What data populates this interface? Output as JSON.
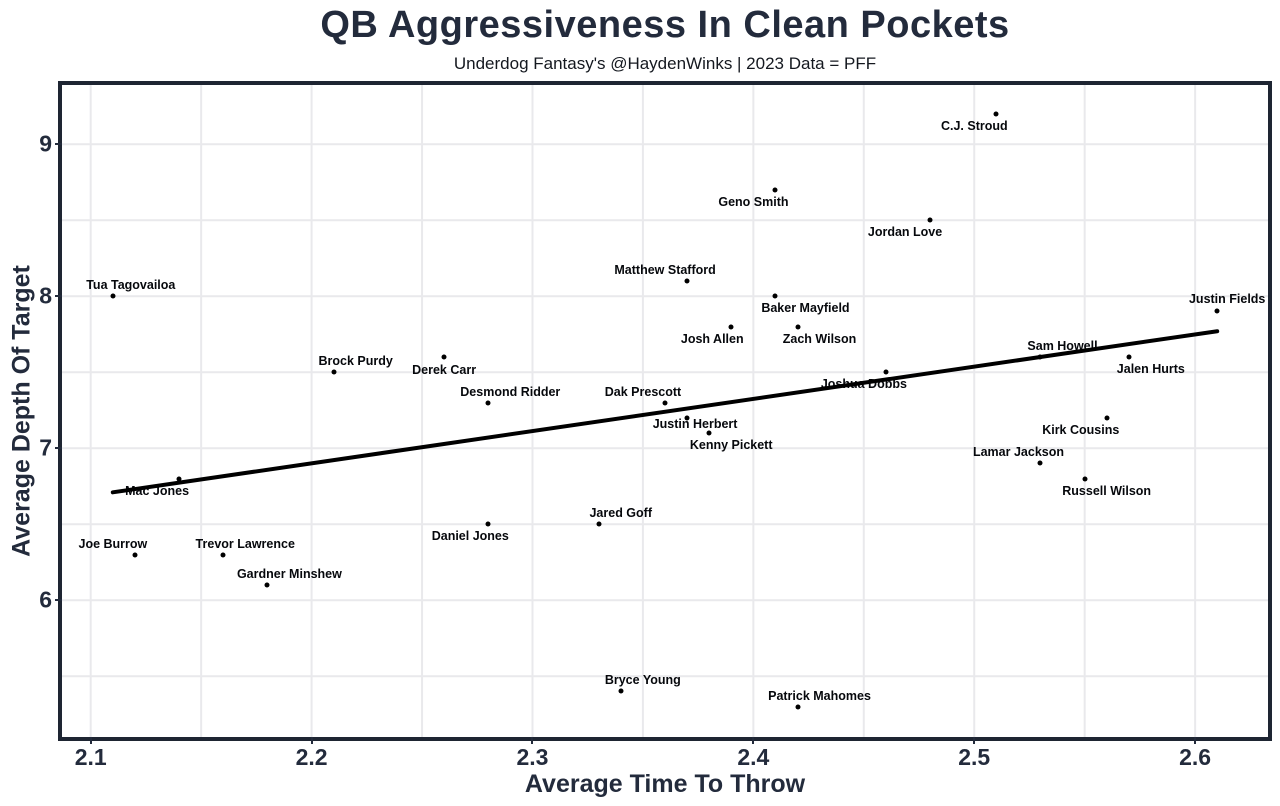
{
  "page": {
    "title": "QB Aggressiveness In Clean Pockets",
    "subtitle": "Underdog Fantasy's @HaydenWinks | 2023 Data = PFF"
  },
  "chart_data": {
    "type": "scatter",
    "title": "QB Aggressiveness In Clean Pockets",
    "subtitle": "Underdog Fantasy's @HaydenWinks | 2023 Data = PFF",
    "xlabel": "Average Time To Throw",
    "ylabel": "Average Depth Of Target",
    "xlim": [
      2.087,
      2.633
    ],
    "ylim": [
      5.1,
      9.39
    ],
    "x_ticks": [
      {
        "value": 2.1,
        "label": "2.1"
      },
      {
        "value": 2.2,
        "label": "2.2"
      },
      {
        "value": 2.3,
        "label": "2.3"
      },
      {
        "value": 2.4,
        "label": "2.4"
      },
      {
        "value": 2.5,
        "label": "2.5"
      },
      {
        "value": 2.6,
        "label": "2.6"
      }
    ],
    "y_ticks": [
      {
        "value": 6,
        "label": "6"
      },
      {
        "value": 7,
        "label": "7"
      },
      {
        "value": 8,
        "label": "8"
      },
      {
        "value": 9,
        "label": "9"
      }
    ],
    "grid": {
      "on": true,
      "x_start": 2.1,
      "x_end": 2.6,
      "x_step": 0.05,
      "y_start": 5.5,
      "y_end": 9.0,
      "y_step": 0.5
    },
    "legend": "none",
    "trend_line": {
      "x1": 2.11,
      "y1": 6.71,
      "x2": 2.61,
      "y2": 7.77
    },
    "colors": {
      "background": "#ffffff",
      "ink": "#232b3c",
      "panel_border": "#1e2532",
      "grid_line": "#e9e9ec",
      "point": "#000000",
      "trend": "#000000"
    },
    "points": [
      {
        "name": "Tua Tagovailoa",
        "x": 2.11,
        "y": 8.0,
        "pos": "above-right",
        "dx": 18
      },
      {
        "name": "Mac Jones",
        "x": 2.14,
        "y": 6.8,
        "pos": "below-left"
      },
      {
        "name": "Joe Burrow",
        "x": 2.12,
        "y": 6.3,
        "pos": "above-left"
      },
      {
        "name": "Trevor Lawrence",
        "x": 2.16,
        "y": 6.3,
        "pos": "above-right"
      },
      {
        "name": "Gardner Minshew",
        "x": 2.18,
        "y": 6.1,
        "pos": "above-right"
      },
      {
        "name": "Brock Purdy",
        "x": 2.21,
        "y": 7.5,
        "pos": "above-right"
      },
      {
        "name": "Derek Carr",
        "x": 2.26,
        "y": 7.6,
        "pos": "below"
      },
      {
        "name": "Desmond Ridder",
        "x": 2.28,
        "y": 7.3,
        "pos": "above-right"
      },
      {
        "name": "Daniel Jones",
        "x": 2.28,
        "y": 6.5,
        "pos": "below-left",
        "dx": -18
      },
      {
        "name": "Jared Goff",
        "x": 2.33,
        "y": 6.5,
        "pos": "above-right"
      },
      {
        "name": "Bryce Young",
        "x": 2.34,
        "y": 5.4,
        "pos": "above-right"
      },
      {
        "name": "Dak Prescott",
        "x": 2.36,
        "y": 7.3,
        "pos": "above-left"
      },
      {
        "name": "Matthew Stafford",
        "x": 2.37,
        "y": 8.1,
        "pos": "above-left"
      },
      {
        "name": "Justin Herbert",
        "x": 2.37,
        "y": 7.2,
        "pos": "below",
        "dx": 8,
        "dy": 6
      },
      {
        "name": "Kenny Pickett",
        "x": 2.38,
        "y": 7.1,
        "pos": "below-right"
      },
      {
        "name": "Josh Allen",
        "x": 2.39,
        "y": 7.8,
        "pos": "below-left",
        "dx": -19
      },
      {
        "name": "Geno Smith",
        "x": 2.41,
        "y": 8.7,
        "pos": "below-left"
      },
      {
        "name": "Baker Mayfield",
        "x": 2.41,
        "y": 8.0,
        "pos": "below-right",
        "dx": 30
      },
      {
        "name": "Zach Wilson",
        "x": 2.42,
        "y": 7.8,
        "pos": "below-right"
      },
      {
        "name": "Patrick Mahomes",
        "x": 2.42,
        "y": 5.3,
        "pos": "above-right"
      },
      {
        "name": "Joshua Dobbs",
        "x": 2.46,
        "y": 7.5,
        "pos": "below-left"
      },
      {
        "name": "Jordan Love",
        "x": 2.48,
        "y": 8.5,
        "pos": "below-left",
        "dx": -25
      },
      {
        "name": "C.J. Stroud",
        "x": 2.51,
        "y": 9.2,
        "pos": "below-left"
      },
      {
        "name": "Sam Howell",
        "x": 2.53,
        "y": 7.6,
        "pos": "above-right"
      },
      {
        "name": "Lamar Jackson",
        "x": 2.53,
        "y": 6.9,
        "pos": "above-left"
      },
      {
        "name": "Russell Wilson",
        "x": 2.55,
        "y": 6.8,
        "pos": "below-right"
      },
      {
        "name": "Kirk Cousins",
        "x": 2.56,
        "y": 7.2,
        "pos": "below-left",
        "dx": -26
      },
      {
        "name": "Jalen Hurts",
        "x": 2.57,
        "y": 7.6,
        "pos": "below-right"
      },
      {
        "name": "Justin Fields",
        "x": 2.61,
        "y": 7.9,
        "pos": "above",
        "dx": 10
      }
    ]
  }
}
